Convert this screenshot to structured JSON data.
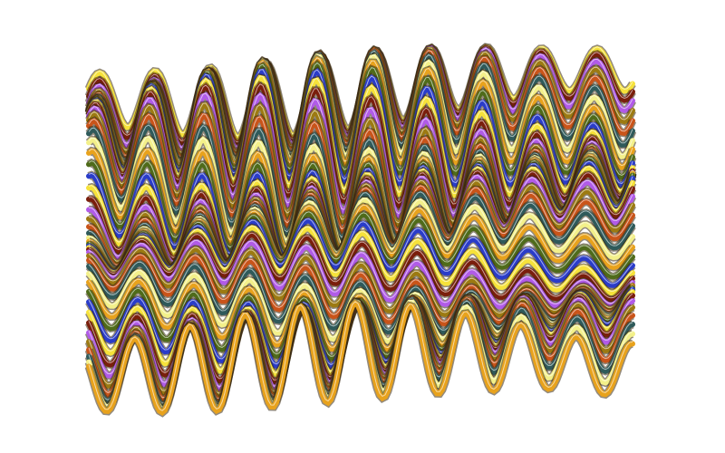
{
  "artwork": {
    "subject": "abstract-wavy-ribbons",
    "background": "#ffffff",
    "palette": [
      "#f6e23a",
      "#e8a21c",
      "#c9541a",
      "#7a1e0c",
      "#4f6b1a",
      "#2f5a5a",
      "#b15be8",
      "#2a3cc9",
      "#f3f08a",
      "#9c7a12"
    ]
  }
}
